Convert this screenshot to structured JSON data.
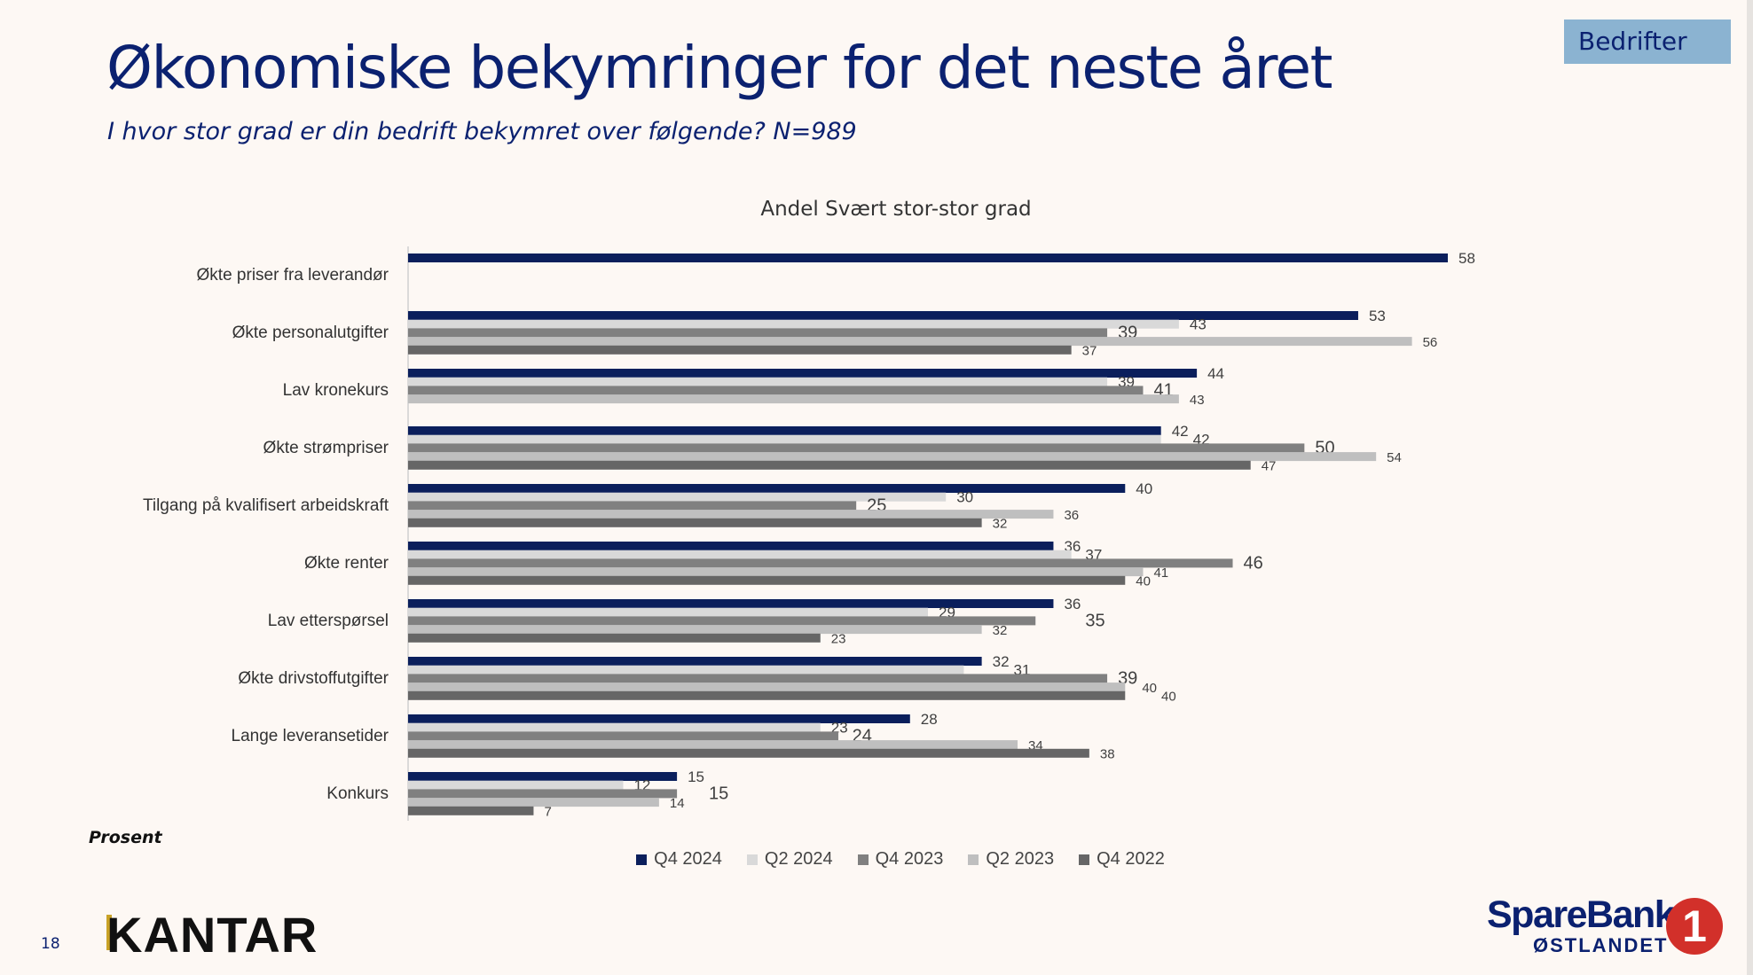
{
  "header": {
    "title": "Økonomiske bekymringer for det neste året",
    "subtitle": "I hvor stor grad er din bedrift bekymret over følgende? N=989",
    "badge": "Bedrifter"
  },
  "footer": {
    "unit_note": "Prosent",
    "page_number": "18",
    "kantar_logo": "KANTAR",
    "sparebank_name": "SpareBank",
    "sparebank_region": "ØSTLANDET",
    "sparebank_mark": "1"
  },
  "chart_data": {
    "type": "bar",
    "orientation": "horizontal",
    "title": "Andel Svært stor-stor grad",
    "xlim": [
      0,
      58
    ],
    "grid": false,
    "legend_position": "bottom",
    "categories": [
      "Økte priser fra leverandør",
      "Økte personalutgifter",
      "Lav kronekurs",
      "Økte strømpriser",
      "Tilgang på kvalifisert arbeidskraft",
      "Økte renter",
      "Lav etterspørsel",
      "Økte drivstoffutgifter",
      "Lange leveransetider",
      "Konkurs"
    ],
    "series": [
      {
        "name": "Q4 2024",
        "color": "#0b1f5c",
        "values": [
          58,
          53,
          44,
          42,
          40,
          36,
          36,
          32,
          28,
          15
        ]
      },
      {
        "name": "Q2 2024",
        "color": "#d9d9d9",
        "values": [
          null,
          43,
          39,
          42,
          30,
          37,
          29,
          31,
          23,
          12
        ]
      },
      {
        "name": "Q4 2023",
        "color": "#808080",
        "values": [
          null,
          39,
          41,
          50,
          25,
          46,
          35,
          39,
          24,
          15
        ]
      },
      {
        "name": "Q2 2023",
        "color": "#bfbfbf",
        "values": [
          null,
          56,
          43,
          54,
          36,
          41,
          32,
          40,
          34,
          14
        ]
      },
      {
        "name": "Q4 2022",
        "color": "#666666",
        "values": [
          null,
          37,
          null,
          47,
          32,
          40,
          23,
          40,
          38,
          7
        ]
      }
    ]
  }
}
